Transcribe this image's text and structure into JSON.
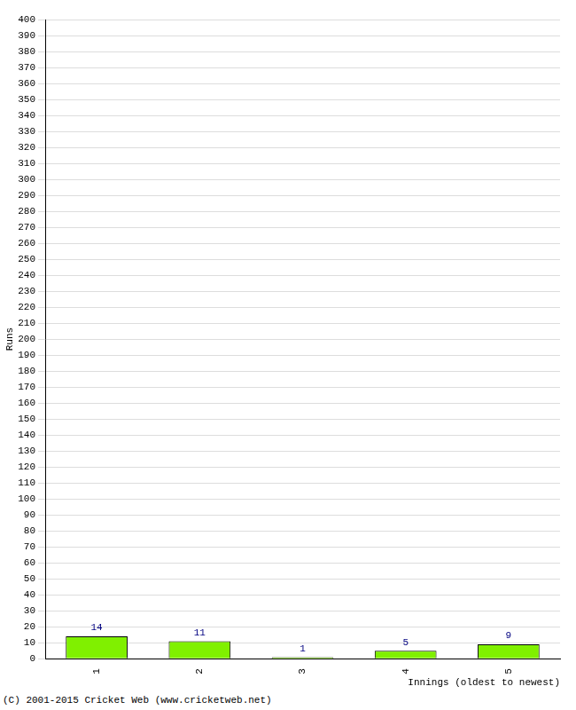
{
  "chart_data": {
    "type": "bar",
    "categories": [
      "1",
      "2",
      "3",
      "4",
      "5"
    ],
    "values": [
      14,
      11,
      1,
      5,
      9
    ],
    "color": "#80f000",
    "x_label": "Innings (oldest to newest)",
    "y_label": "Runs",
    "annotations": [
      "(C) 2001-2015 Cricket Web (www.cricketweb.net)"
    ],
    "ylim": [
      0,
      400
    ],
    "yticks": [
      0,
      10,
      20,
      30,
      40,
      50,
      60,
      70,
      80,
      90,
      100,
      110,
      120,
      130,
      140,
      150,
      160,
      170,
      180,
      190,
      200,
      210,
      220,
      230,
      240,
      250,
      260,
      270,
      280,
      290,
      300,
      310,
      320,
      330,
      340,
      350,
      360,
      370,
      380,
      390,
      400
    ],
    "grid": true,
    "data_labels": true
  }
}
